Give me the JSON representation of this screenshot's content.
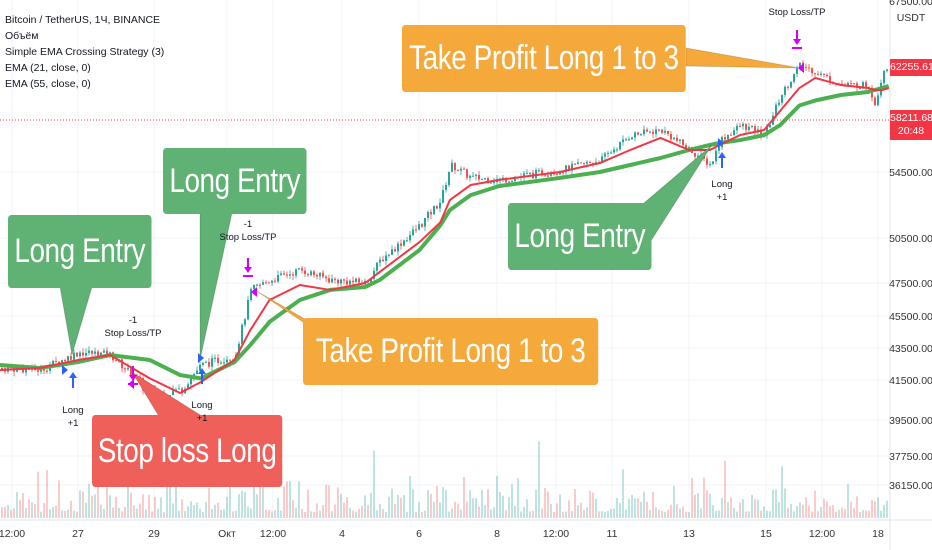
{
  "legend": {
    "symbol": "Bitcoin / TetherUS, 1Ч, BINANCE",
    "volume": "Объём",
    "strategy": "Simple EMA Crossing Strategy (3)",
    "ema_fast": "EMA (21, close, 0)",
    "ema_slow": "EMA (55, close, 0)"
  },
  "price_axis": {
    "currency": "USDT",
    "top_partial": "67500.00",
    "ticks": [
      "54500.00",
      "50500.00",
      "47500.00",
      "45500.00",
      "43500.00",
      "41500.00",
      "39500.00",
      "37750.00",
      "36150.00"
    ],
    "last_price": "62255.61",
    "current_price": "58211.68",
    "countdown": "20:48"
  },
  "time_axis": {
    "ticks": [
      "12:00",
      "27",
      "29",
      "Окт",
      "12:00",
      "4",
      "6",
      "8",
      "12:00",
      "11",
      "13",
      "15",
      "12:00",
      "18"
    ]
  },
  "colors": {
    "up": "#26a69a",
    "down": "#ef5350",
    "ema_fast": "#f23645",
    "ema_slow": "#4caf50",
    "long_entry_box": "#5fb174",
    "stop_loss_box": "#f0605a",
    "take_profit_box": "#f5a93a",
    "signal_arrow_long": "#2962ff",
    "signal_arrow_exit": "#d500f9"
  },
  "callouts": [
    {
      "text": "Long Entry",
      "type": "long_entry"
    },
    {
      "text": "Long Entry",
      "type": "long_entry"
    },
    {
      "text": "Long Entry",
      "type": "long_entry"
    },
    {
      "text": "Stop loss Long",
      "type": "stop_loss"
    },
    {
      "text": "Take Profit Long 1 to 3",
      "type": "take_profit"
    },
    {
      "text": "Take Profit Long 1 to 3",
      "type": "take_profit"
    }
  ],
  "signals": [
    {
      "label": "Long",
      "qty": "+1"
    },
    {
      "label": "Stop Loss/TP",
      "qty": "-1"
    },
    {
      "label": "Long",
      "qty": "+1"
    },
    {
      "label": "Stop Loss/TP",
      "qty": "-1"
    },
    {
      "label": "Long",
      "qty": "+1"
    },
    {
      "label": "Stop Loss/TP",
      "qty": ""
    }
  ],
  "chart_data": {
    "type": "candlestick",
    "title": "Bitcoin / TetherUS, 1Ч, BINANCE",
    "ylim": [
      36150,
      67500
    ],
    "grid": true,
    "close_path": [
      [
        "09-24 23:00",
        42250
      ],
      [
        "09-26 00:00",
        42125
      ],
      [
        "09-27 00:00",
        43250
      ],
      [
        "09-27 20:00",
        43060
      ],
      [
        "09-28 21:00",
        40750
      ],
      [
        "09-29 16:00",
        41000
      ],
      [
        "09-30 05:00",
        42440
      ],
      [
        "10-01 02:00",
        43060
      ],
      [
        "10-01 12:00",
        47080
      ],
      [
        "10-02 00:00",
        47700
      ],
      [
        "10-02 19:00",
        48370
      ],
      [
        "10-03 14:00",
        47700
      ],
      [
        "10-04 12:00",
        47500
      ],
      [
        "10-04 21:00",
        49030
      ],
      [
        "10-05 22:00",
        51290
      ],
      [
        "10-06 11:00",
        52800
      ],
      [
        "10-06 17:00",
        55000
      ],
      [
        "10-07 06:00",
        54140
      ],
      [
        "10-08 00:00",
        54020
      ],
      [
        "10-09 14:00",
        54640
      ],
      [
        "10-10 15:00",
        55360
      ],
      [
        "10-11 10:00",
        57140
      ],
      [
        "10-12 05:00",
        57500
      ],
      [
        "10-12 23:00",
        56070
      ],
      [
        "10-13 12:00",
        55000
      ],
      [
        "10-13 18:00",
        56780
      ],
      [
        "10-14 07:00",
        57850
      ],
      [
        "10-14 22:00",
        57140
      ],
      [
        "10-15 08:00",
        60120
      ],
      [
        "10-15 20:00",
        62410
      ],
      [
        "10-16 06:00",
        61870
      ],
      [
        "10-16 22:00",
        60880
      ],
      [
        "10-17 15:00",
        60880
      ],
      [
        "10-17 19:00",
        59360
      ],
      [
        "10-18 00:00",
        62030
      ],
      [
        "10-18 04:00",
        62410
      ]
    ],
    "ema21": [
      42125,
      42250,
      42750,
      43060,
      41600,
      40850,
      41400,
      42750,
      44620,
      46470,
      47380,
      47080,
      47500,
      48230,
      50230,
      51440,
      52800,
      53710,
      54020,
      54500,
      55140,
      56070,
      56930,
      56070,
      56070,
      56430,
      57140,
      57500,
      58910,
      60650,
      61420,
      60880,
      60650,
      60500,
      60500,
      60650
    ],
    "ema55": [
      42440,
      42250,
      42620,
      43060,
      42750,
      41810,
      41600,
      42620,
      43690,
      45130,
      46470,
      47080,
      47260,
      47700,
      49700,
      51260,
      52190,
      53100,
      53650,
      54140,
      54500,
      55000,
      55500,
      56070,
      56430,
      56570,
      56780,
      57140,
      57850,
      59320,
      59700,
      60120,
      60350,
      60500,
      60650,
      60800
    ]
  }
}
